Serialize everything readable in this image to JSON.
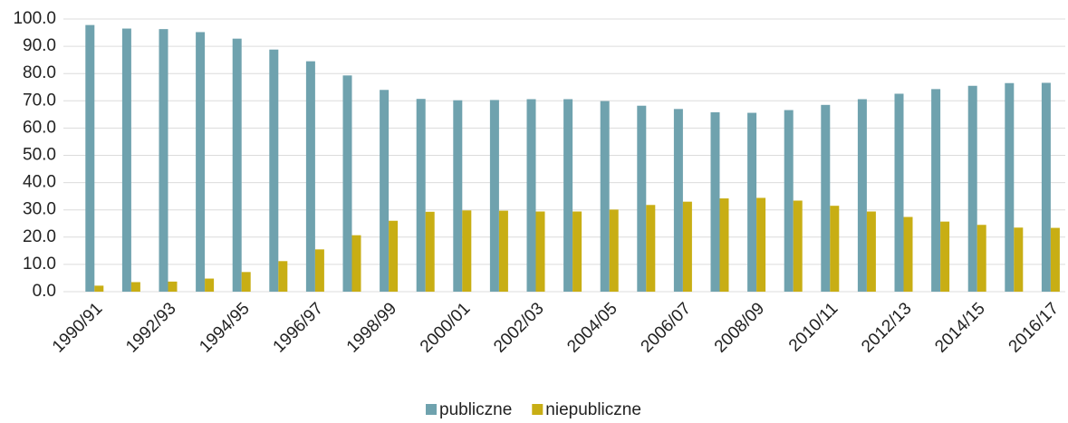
{
  "chart_data": {
    "type": "bar",
    "categories": [
      "1990/91",
      null,
      "1992/93",
      null,
      "1994/95",
      null,
      "1996/97",
      null,
      "1998/99",
      null,
      "2000/01",
      null,
      "2002/03",
      null,
      "2004/05",
      null,
      "2006/07",
      null,
      "2008/09",
      null,
      "2010/11",
      null,
      "2012/13",
      null,
      "2014/15",
      null,
      "2016/17"
    ],
    "series": [
      {
        "name": "publiczne",
        "color": "#6fa2ae",
        "values": [
          97.8,
          96.5,
          96.3,
          95.2,
          92.8,
          88.8,
          84.5,
          79.3,
          74.0,
          70.7,
          70.2,
          70.3,
          70.6,
          70.6,
          69.9,
          68.2,
          67.0,
          65.8,
          65.6,
          66.6,
          68.5,
          70.6,
          72.6,
          74.3,
          75.5,
          76.5,
          76.6
        ]
      },
      {
        "name": "niepubliczne",
        "color": "#c8ae14",
        "values": [
          2.2,
          3.5,
          3.7,
          4.8,
          7.2,
          11.2,
          15.5,
          20.7,
          26.0,
          29.3,
          29.8,
          29.7,
          29.4,
          29.4,
          30.1,
          31.8,
          33.0,
          34.2,
          34.4,
          33.4,
          31.5,
          29.4,
          27.4,
          25.7,
          24.5,
          23.5,
          23.4
        ]
      }
    ],
    "ylim": [
      0,
      100
    ],
    "yticks": [
      {
        "value": 0,
        "label": "0.0"
      },
      {
        "value": 10,
        "label": "10.0"
      },
      {
        "value": 20,
        "label": "20.0"
      },
      {
        "value": 30,
        "label": "30.0"
      },
      {
        "value": 40,
        "label": "40.0"
      },
      {
        "value": 50,
        "label": "50.0"
      },
      {
        "value": 60,
        "label": "60.0"
      },
      {
        "value": 70,
        "label": "70.0"
      },
      {
        "value": 80,
        "label": "80.0"
      },
      {
        "value": 90,
        "label": "90.0"
      },
      {
        "value": 100,
        "label": "100.0"
      }
    ],
    "grid": true,
    "legend": "bottom"
  }
}
